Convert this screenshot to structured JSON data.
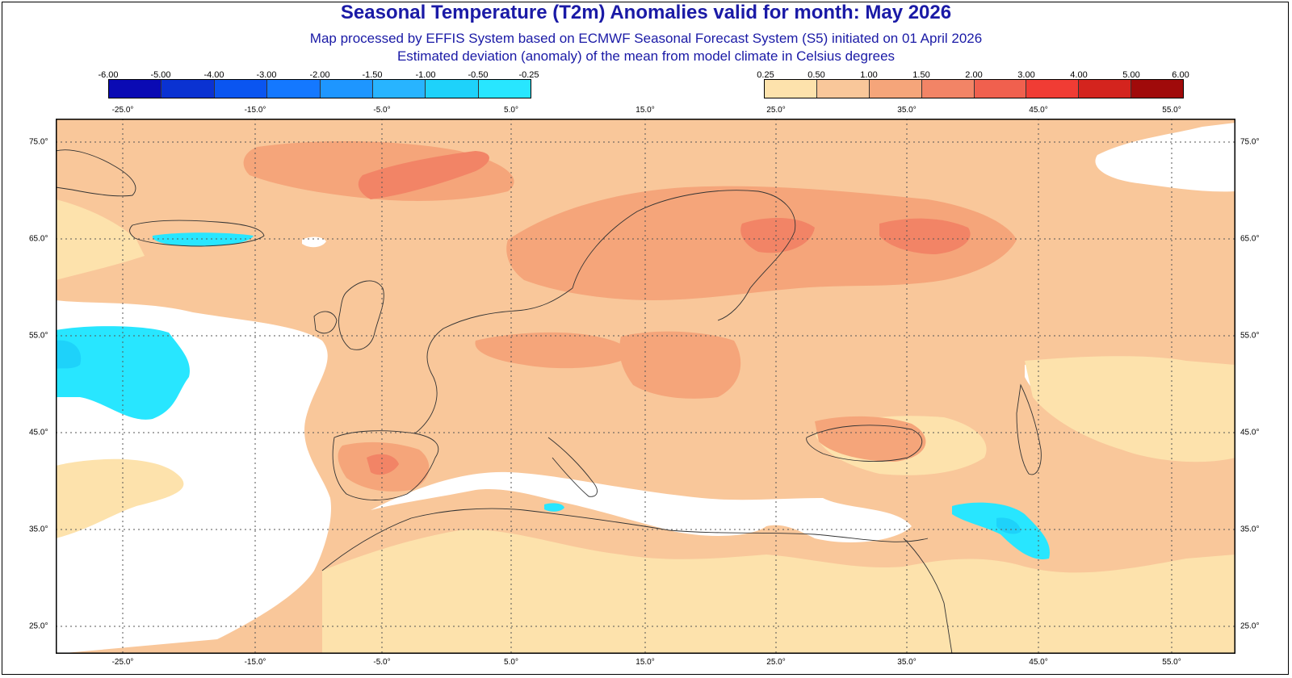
{
  "header": {
    "title": "Seasonal Temperature (T2m) Anomalies valid for month: May 2026",
    "subtitle1": "Map processed by EFFIS System based on ECMWF Seasonal Forecast System (S5) initiated on 01 April 2026",
    "subtitle2": "Estimated deviation (anomaly) of the mean from model climate in Celsius degrees"
  },
  "legend": {
    "negative": {
      "labels": [
        "-6.00",
        "-5.00",
        "-4.00",
        "-3.00",
        "-2.00",
        "-1.50",
        "-1.00",
        "-0.50",
        "-0.25"
      ],
      "colors": [
        "#0a0ab4",
        "#0a32d2",
        "#0a55f0",
        "#1478ff",
        "#1e96ff",
        "#28b4ff",
        "#1ed2fa",
        "#28e6ff"
      ]
    },
    "positive": {
      "labels": [
        "0.25",
        "0.50",
        "1.00",
        "1.50",
        "2.00",
        "3.00",
        "4.00",
        "5.00",
        "6.00"
      ],
      "colors": [
        "#fde2ac",
        "#f9c79a",
        "#f5a57a",
        "#f28466",
        "#f0604e",
        "#f03c34",
        "#d4241e",
        "#a00a0a"
      ]
    }
  },
  "axes": {
    "lon_top": [
      "-25.0°",
      "-15.0°",
      "-5.0°",
      "5.0°",
      "15.0°",
      "25.0°",
      "35.0°",
      "45.0°",
      "55.0°"
    ],
    "lon_bottom": [
      "-25.0°",
      "-15.0°",
      "-5.0°",
      "5.0°",
      "15.0°",
      "25.0°",
      "35.0°",
      "45.0°",
      "55.0°"
    ],
    "lat_left": [
      "75.0°",
      "65.0°",
      "55.0°",
      "45.0°",
      "35.0°",
      "25.0°"
    ],
    "lat_right": [
      "75.0°",
      "65.0°",
      "55.0°",
      "45.0°",
      "35.0°",
      "25.0°"
    ]
  },
  "map": {
    "colors": {
      "base": "#f9c79a",
      "neutral": "#ffffff",
      "light": "#fde2ac",
      "warm": "#f5a57a",
      "hot": "#f28466",
      "cold": "#28e6ff",
      "colder": "#1ed2fa",
      "coast": "#333333"
    }
  }
}
